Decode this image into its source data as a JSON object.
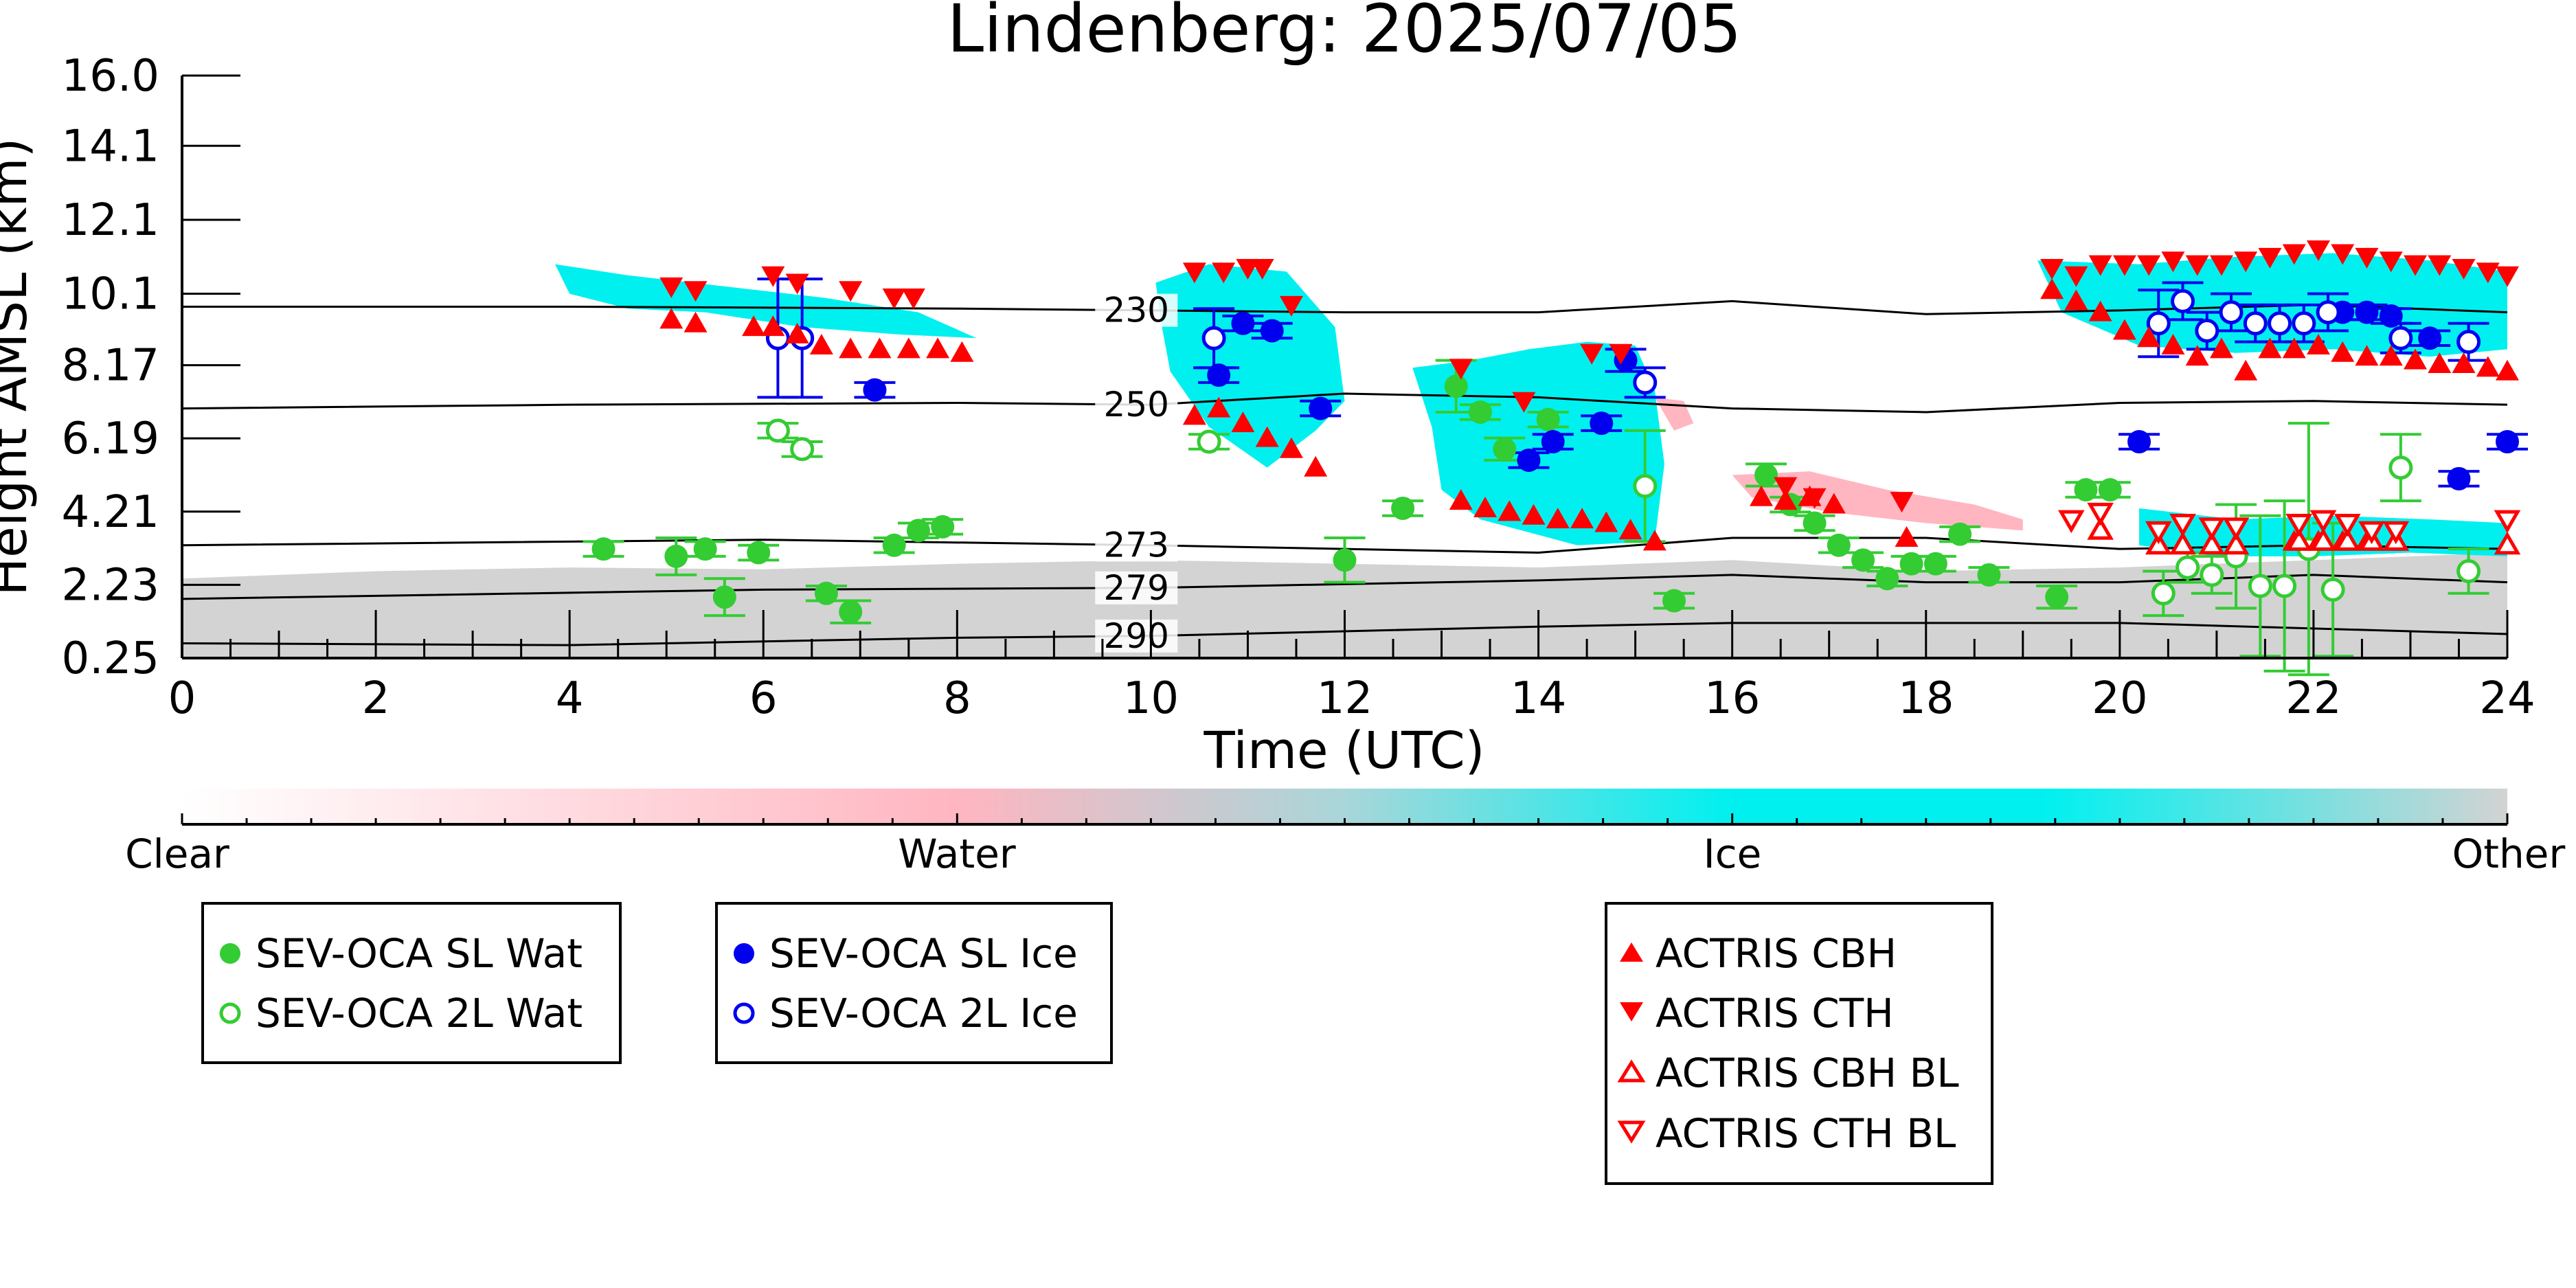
{
  "chart_data": {
    "type": "scatter",
    "title": "Lindenberg: 2025/07/05",
    "xlabel": "Time (UTC)",
    "ylabel": "Height AMSL (km)",
    "xlim": [
      0,
      24
    ],
    "ylim": [
      0.25,
      16.0
    ],
    "xticks": [
      "0",
      "2",
      "4",
      "6",
      "8",
      "10",
      "12",
      "14",
      "16",
      "18",
      "20",
      "22",
      "24"
    ],
    "yticks": [
      "16.0",
      "14.1",
      "12.1",
      "10.1",
      "8.17",
      "6.19",
      "4.21",
      "2.23",
      "0.25"
    ],
    "colorbar": {
      "labels": [
        "Clear",
        "Water",
        "Ice",
        "Other"
      ],
      "colors": [
        "#ffffff",
        "#ffb6c1",
        "#00f0f0",
        "#d3d3d3"
      ]
    },
    "contours": [
      {
        "label": "230",
        "label_x": 9.85,
        "points": [
          [
            0,
            9.75
          ],
          [
            4,
            9.75
          ],
          [
            8,
            9.7
          ],
          [
            12,
            9.6
          ],
          [
            14,
            9.6
          ],
          [
            16,
            9.9
          ],
          [
            18,
            9.55
          ],
          [
            20,
            9.65
          ],
          [
            22,
            9.8
          ],
          [
            24,
            9.6
          ]
        ]
      },
      {
        "label": "250",
        "label_x": 9.85,
        "points": [
          [
            0,
            7.0
          ],
          [
            4,
            7.1
          ],
          [
            8,
            7.15
          ],
          [
            10,
            7.1
          ],
          [
            12,
            7.4
          ],
          [
            14,
            7.3
          ],
          [
            16,
            7.0
          ],
          [
            18,
            6.9
          ],
          [
            20,
            7.15
          ],
          [
            22,
            7.2
          ],
          [
            24,
            7.1
          ]
        ]
      },
      {
        "label": "273",
        "label_x": 9.85,
        "points": [
          [
            0,
            3.3
          ],
          [
            6,
            3.45
          ],
          [
            10,
            3.3
          ],
          [
            14,
            3.1
          ],
          [
            16,
            3.5
          ],
          [
            18,
            3.5
          ],
          [
            20,
            3.2
          ],
          [
            22,
            3.3
          ],
          [
            24,
            3.2
          ]
        ]
      },
      {
        "label": "279",
        "label_x": 9.85,
        "points": [
          [
            0,
            1.85
          ],
          [
            6,
            2.1
          ],
          [
            10,
            2.15
          ],
          [
            14,
            2.35
          ],
          [
            16,
            2.5
          ],
          [
            18,
            2.3
          ],
          [
            20,
            2.3
          ],
          [
            22,
            2.5
          ],
          [
            24,
            2.3
          ]
        ]
      },
      {
        "label": "290",
        "label_x": 9.85,
        "points": [
          [
            0,
            0.65
          ],
          [
            4,
            0.6
          ],
          [
            8,
            0.8
          ],
          [
            10,
            0.85
          ],
          [
            14,
            1.1
          ],
          [
            16,
            1.2
          ],
          [
            20,
            1.2
          ],
          [
            24,
            0.9
          ]
        ]
      }
    ],
    "regions": [
      {
        "class": "Other",
        "color": "#d3d3d3",
        "points": [
          [
            0,
            0.25
          ],
          [
            0,
            2.4
          ],
          [
            2,
            2.6
          ],
          [
            4,
            2.7
          ],
          [
            6,
            2.65
          ],
          [
            8,
            2.8
          ],
          [
            10,
            2.9
          ],
          [
            12,
            2.8
          ],
          [
            14,
            2.7
          ],
          [
            16,
            2.9
          ],
          [
            18,
            2.6
          ],
          [
            20,
            2.7
          ],
          [
            22,
            2.9
          ],
          [
            24,
            3.1
          ],
          [
            24,
            0.25
          ]
        ]
      },
      {
        "class": "Ice",
        "color": "#00f0f0",
        "points": [
          [
            3.85,
            10.9
          ],
          [
            4.6,
            10.6
          ],
          [
            5.6,
            10.3
          ],
          [
            6.6,
            10.0
          ],
          [
            7.6,
            9.6
          ],
          [
            8.2,
            8.9
          ],
          [
            7.4,
            9.0
          ],
          [
            6.4,
            9.2
          ],
          [
            5.4,
            9.6
          ],
          [
            4.6,
            9.7
          ],
          [
            4.0,
            10.1
          ]
        ]
      },
      {
        "class": "Ice",
        "color": "#00f0f0",
        "points": [
          [
            10.05,
            10.4
          ],
          [
            10.6,
            10.9
          ],
          [
            11.4,
            10.7
          ],
          [
            11.9,
            9.2
          ],
          [
            12.0,
            7.2
          ],
          [
            11.7,
            6.4
          ],
          [
            11.2,
            5.4
          ],
          [
            10.6,
            6.5
          ],
          [
            10.2,
            8.0
          ],
          [
            10.1,
            9.4
          ]
        ]
      },
      {
        "class": "Ice",
        "color": "#00f0f0",
        "points": [
          [
            12.7,
            8.1
          ],
          [
            13.3,
            8.3
          ],
          [
            13.9,
            8.6
          ],
          [
            14.5,
            8.8
          ],
          [
            15.0,
            8.7
          ],
          [
            15.2,
            7.5
          ],
          [
            15.3,
            5.5
          ],
          [
            15.2,
            3.4
          ],
          [
            14.4,
            3.3
          ],
          [
            13.4,
            4.0
          ],
          [
            13.0,
            4.8
          ],
          [
            12.9,
            6.5
          ]
        ]
      },
      {
        "class": "Ice",
        "color": "#00f0f0",
        "points": [
          [
            19.15,
            11.0
          ],
          [
            20.2,
            10.9
          ],
          [
            21.2,
            11.1
          ],
          [
            22.2,
            11.2
          ],
          [
            23.2,
            11.0
          ],
          [
            24,
            10.7
          ],
          [
            24,
            8.6
          ],
          [
            23.2,
            8.4
          ],
          [
            22.2,
            8.6
          ],
          [
            21.2,
            8.5
          ],
          [
            20.2,
            8.7
          ],
          [
            19.4,
            9.6
          ]
        ]
      },
      {
        "class": "Ice",
        "color": "#00f0f0",
        "points": [
          [
            20.2,
            4.3
          ],
          [
            21.2,
            4.0
          ],
          [
            22.2,
            4.1
          ],
          [
            23.2,
            4.0
          ],
          [
            24,
            3.9
          ],
          [
            24,
            3.0
          ],
          [
            23.0,
            3.1
          ],
          [
            22.0,
            3.0
          ],
          [
            21.0,
            3.0
          ],
          [
            20.2,
            3.3
          ]
        ]
      },
      {
        "class": "Water",
        "color": "#ffb6c1",
        "points": [
          [
            16.0,
            5.2
          ],
          [
            16.8,
            5.3
          ],
          [
            17.6,
            4.8
          ],
          [
            18.5,
            4.4
          ],
          [
            19.0,
            4.0
          ],
          [
            19.0,
            3.7
          ],
          [
            18.0,
            3.9
          ],
          [
            17.0,
            4.2
          ],
          [
            16.2,
            4.6
          ]
        ]
      },
      {
        "class": "Water",
        "color": "#ffb6c1",
        "points": [
          [
            15.2,
            7.3
          ],
          [
            15.5,
            7.2
          ],
          [
            15.6,
            6.6
          ],
          [
            15.4,
            6.4
          ]
        ]
      }
    ],
    "series": [
      {
        "name": "SEV-OCA SL Wat",
        "marker": "filled-circle",
        "color": "#33cc33",
        "x": [
          4.35,
          5.1,
          5.4,
          5.6,
          5.95,
          6.65,
          6.9,
          7.35,
          7.6,
          7.85,
          12.0,
          12.6,
          13.15,
          13.4,
          13.65,
          14.1,
          15.4,
          16.35,
          16.6,
          16.85,
          17.1,
          17.35,
          17.6,
          17.85,
          18.1,
          18.35,
          18.65,
          19.35,
          19.65,
          19.9
        ],
        "y": [
          3.2,
          3.0,
          3.2,
          1.9,
          3.1,
          2.0,
          1.5,
          3.3,
          3.7,
          3.8,
          2.9,
          4.3,
          7.6,
          6.9,
          5.9,
          6.7,
          1.8,
          5.2,
          4.4,
          3.9,
          3.3,
          2.9,
          2.4,
          2.8,
          2.8,
          3.6,
          2.5,
          1.9,
          4.8,
          4.8
        ],
        "err": [
          0.2,
          0.5,
          0.2,
          0.5,
          0.2,
          0.2,
          0.3,
          0.2,
          0.2,
          0.2,
          0.6,
          0.2,
          0.7,
          0.2,
          0.3,
          0.2,
          0.2,
          0.3,
          0.2,
          0.2,
          0.2,
          0.2,
          0.2,
          0.2,
          0.2,
          0.2,
          0.2,
          0.3,
          0.2,
          0.2
        ]
      },
      {
        "name": "SEV-OCA 2L Wat",
        "marker": "open-circle",
        "color": "#33cc33",
        "x": [
          6.15,
          6.4,
          10.6,
          15.1,
          20.45,
          20.7,
          20.95,
          21.2,
          21.45,
          21.7,
          21.95,
          22.2,
          22.9,
          23.6
        ],
        "y": [
          6.4,
          5.9,
          6.1,
          4.9,
          2.0,
          2.7,
          2.5,
          3.0,
          2.2,
          2.2,
          3.2,
          2.1,
          5.4,
          2.6
        ],
        "err": [
          0.2,
          0.2,
          0.2,
          1.5,
          0.6,
          0.4,
          0.5,
          1.4,
          1.9,
          2.3,
          3.4,
          1.8,
          0.9,
          0.6
        ]
      },
      {
        "name": "SEV-OCA SL Ice",
        "marker": "filled-circle",
        "color": "#0000ee",
        "x": [
          7.15,
          10.7,
          10.95,
          11.25,
          11.75,
          13.9,
          14.15,
          14.65,
          14.9,
          20.2,
          22.3,
          22.55,
          22.8,
          23.2,
          23.5,
          24.0
        ],
        "y": [
          7.5,
          7.9,
          9.3,
          9.1,
          7.0,
          5.6,
          6.1,
          6.6,
          8.3,
          6.1,
          9.6,
          9.6,
          9.5,
          8.9,
          5.1,
          6.1
        ],
        "err": [
          0.2,
          0.2,
          0.2,
          0.2,
          0.2,
          0.2,
          0.2,
          0.2,
          0.3,
          0.2,
          0.2,
          0.2,
          0.2,
          0.2,
          0.2,
          0.2
        ]
      },
      {
        "name": "SEV-OCA 2L Ice",
        "marker": "open-circle",
        "color": "#0000ee",
        "x": [
          6.15,
          6.4,
          10.65,
          15.1,
          20.4,
          20.65,
          20.9,
          21.15,
          21.4,
          21.65,
          21.9,
          22.15,
          22.9,
          23.6
        ],
        "y": [
          8.9,
          8.9,
          8.9,
          7.7,
          9.3,
          9.9,
          9.1,
          9.6,
          9.3,
          9.3,
          9.3,
          9.6,
          8.9,
          8.8
        ],
        "err": [
          1.6,
          1.6,
          0.8,
          0.4,
          0.9,
          0.5,
          0.5,
          0.5,
          0.5,
          0.5,
          0.5,
          0.5,
          0.4,
          0.5
        ]
      },
      {
        "name": "ACTRIS CBH",
        "marker": "triangle-up",
        "color": "#ff0000",
        "x": [
          5.05,
          5.3,
          5.9,
          6.1,
          6.35,
          6.6,
          6.9,
          7.2,
          7.5,
          7.8,
          8.05,
          10.45,
          10.7,
          10.95,
          11.2,
          11.45,
          11.7,
          13.2,
          13.45,
          13.7,
          13.95,
          14.2,
          14.45,
          14.7,
          14.95,
          15.2,
          16.3,
          16.55,
          16.8,
          17.05,
          17.8,
          19.3,
          19.55,
          19.8,
          20.05,
          20.3,
          20.55,
          20.8,
          21.05,
          21.3,
          21.55,
          21.8,
          22.05,
          22.3,
          22.55,
          22.8,
          23.05,
          23.3,
          23.55,
          23.8,
          24.0,
          21.8,
          22.05,
          22.3,
          22.55
        ],
        "y": [
          9.4,
          9.3,
          9.2,
          9.2,
          9.0,
          8.7,
          8.6,
          8.6,
          8.6,
          8.6,
          8.5,
          6.8,
          7.0,
          6.6,
          6.2,
          5.9,
          5.4,
          4.5,
          4.3,
          4.2,
          4.1,
          4.0,
          4.0,
          3.9,
          3.7,
          3.4,
          4.6,
          4.5,
          4.6,
          4.4,
          3.5,
          10.2,
          9.9,
          9.6,
          9.1,
          8.9,
          8.7,
          8.4,
          8.6,
          8.0,
          8.6,
          8.6,
          8.7,
          8.5,
          8.4,
          8.4,
          8.3,
          8.2,
          8.2,
          8.1,
          8.0,
          3.4,
          3.4,
          3.4,
          3.4
        ]
      },
      {
        "name": "ACTRIS CTH",
        "marker": "triangle-down",
        "color": "#ff0000",
        "x": [
          5.05,
          5.3,
          6.1,
          6.35,
          6.9,
          7.35,
          7.55,
          10.45,
          10.75,
          11.0,
          11.15,
          11.45,
          13.2,
          13.85,
          14.55,
          14.85,
          16.55,
          16.85,
          17.75,
          19.3,
          19.55,
          19.8,
          20.05,
          20.3,
          20.55,
          20.8,
          21.05,
          21.3,
          21.55,
          21.8,
          22.05,
          22.3,
          22.55,
          22.8,
          23.05,
          23.3,
          23.55,
          23.8,
          24.0
        ],
        "y": [
          10.3,
          10.2,
          10.6,
          10.4,
          10.2,
          10.0,
          10.0,
          10.7,
          10.7,
          10.8,
          10.8,
          9.8,
          8.1,
          7.2,
          8.5,
          8.5,
          4.9,
          4.6,
          4.5,
          10.8,
          10.6,
          10.9,
          10.9,
          10.9,
          11.0,
          10.9,
          10.9,
          11.0,
          11.1,
          11.2,
          11.3,
          11.2,
          11.1,
          11.0,
          10.9,
          10.9,
          10.8,
          10.7,
          10.6
        ]
      },
      {
        "name": "ACTRIS CBH BL",
        "marker": "open-triangle-up",
        "color": "#ff0000",
        "x": [
          19.8,
          20.4,
          20.65,
          20.95,
          21.2,
          21.85,
          22.1,
          22.35,
          22.6,
          22.85,
          24.0
        ],
        "y": [
          3.7,
          3.3,
          3.3,
          3.3,
          3.3,
          3.4,
          3.4,
          3.4,
          3.4,
          3.4,
          3.3
        ]
      },
      {
        "name": "ACTRIS CTH BL",
        "marker": "open-triangle-down",
        "color": "#ff0000",
        "x": [
          19.5,
          19.8,
          20.4,
          20.65,
          20.95,
          21.2,
          21.85,
          22.1,
          22.35,
          22.6,
          22.85,
          24.0
        ],
        "y": [
          4.0,
          4.2,
          3.7,
          3.9,
          3.8,
          3.8,
          3.9,
          4.0,
          3.9,
          3.7,
          3.7,
          4.0
        ]
      }
    ],
    "legends": [
      {
        "entries": [
          "SEV-OCA SL Wat",
          "SEV-OCA 2L Wat"
        ]
      },
      {
        "entries": [
          "SEV-OCA SL Ice",
          "SEV-OCA 2L Ice"
        ]
      },
      {
        "entries": [
          "ACTRIS CBH",
          "ACTRIS CTH",
          "ACTRIS CBH BL",
          "ACTRIS CTH BL"
        ]
      }
    ]
  }
}
